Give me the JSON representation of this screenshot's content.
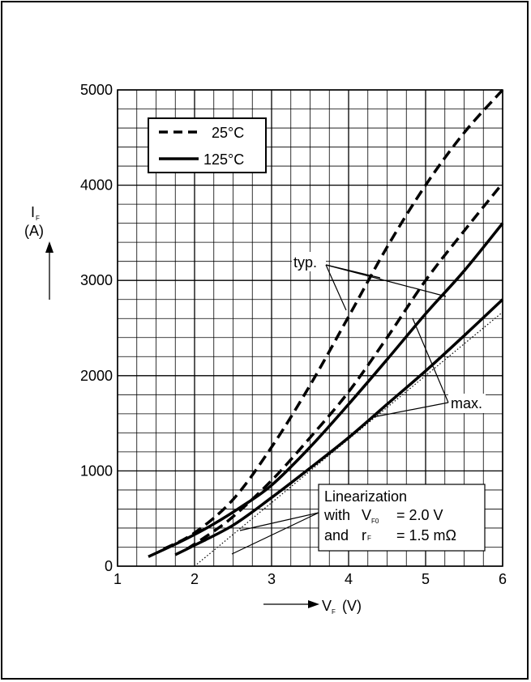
{
  "chart_data": {
    "type": "line",
    "xlabel": "V",
    "xlabel_sub": "F",
    "xlabel_unit": "(V)",
    "ylabel": "I",
    "ylabel_sub": "F",
    "ylabel_unit": "(A)",
    "xlim": [
      1,
      6
    ],
    "ylim": [
      0,
      5000
    ],
    "x_ticks": [
      1,
      2,
      3,
      4,
      5,
      6
    ],
    "y_ticks": [
      0,
      1000,
      2000,
      3000,
      4000,
      5000
    ],
    "grid": true,
    "legend_position": "top-left",
    "legend": [
      {
        "label": "25°C",
        "style": "dashed"
      },
      {
        "label": "125°C",
        "style": "solid"
      }
    ],
    "series": [
      {
        "temp": "25°C",
        "kind": "typ.",
        "style": "dashed",
        "x": [
          1.6,
          2.0,
          2.5,
          3.0,
          3.5,
          4.0,
          4.5,
          5.0,
          5.5,
          6.0
        ],
        "y": [
          180,
          350,
          700,
          1250,
          1900,
          2620,
          3350,
          4000,
          4550,
          5000
        ]
      },
      {
        "temp": "25°C",
        "kind": "max.",
        "style": "dashed",
        "x": [
          1.9,
          2.2,
          2.5,
          3.0,
          3.5,
          4.0,
          4.5,
          5.0,
          5.5,
          6.0
        ],
        "y": [
          180,
          340,
          520,
          900,
          1350,
          1830,
          2400,
          3000,
          3520,
          4020
        ]
      },
      {
        "temp": "125°C",
        "kind": "typ.",
        "style": "solid",
        "x": [
          1.4,
          1.8,
          2.2,
          2.6,
          3.0,
          3.5,
          4.0,
          4.5,
          5.0,
          5.5,
          6.0
        ],
        "y": [
          100,
          250,
          420,
          620,
          850,
          1250,
          1700,
          2170,
          2650,
          3100,
          3600
        ]
      },
      {
        "temp": "125°C",
        "kind": "max.",
        "style": "solid",
        "x": [
          1.75,
          2.0,
          2.5,
          3.0,
          3.5,
          4.0,
          4.5,
          5.0,
          5.5,
          6.0
        ],
        "y": [
          120,
          220,
          430,
          720,
          1030,
          1350,
          1700,
          2050,
          2420,
          2800
        ]
      },
      {
        "kind": "Linearization",
        "style": "dotted",
        "x": [
          2.0,
          6.0
        ],
        "y": [
          0,
          2667
        ]
      }
    ],
    "annotations": {
      "typ": "typ.",
      "max": "max.",
      "lin_title": "Linearization",
      "lin_with": "with",
      "lin_v": "V",
      "lin_v_sub": "F0",
      "lin_v_val": "= 2.0 V",
      "lin_and": "and",
      "lin_r": "r",
      "lin_r_sub": "F",
      "lin_r_val": "= 1.5 mΩ"
    }
  }
}
